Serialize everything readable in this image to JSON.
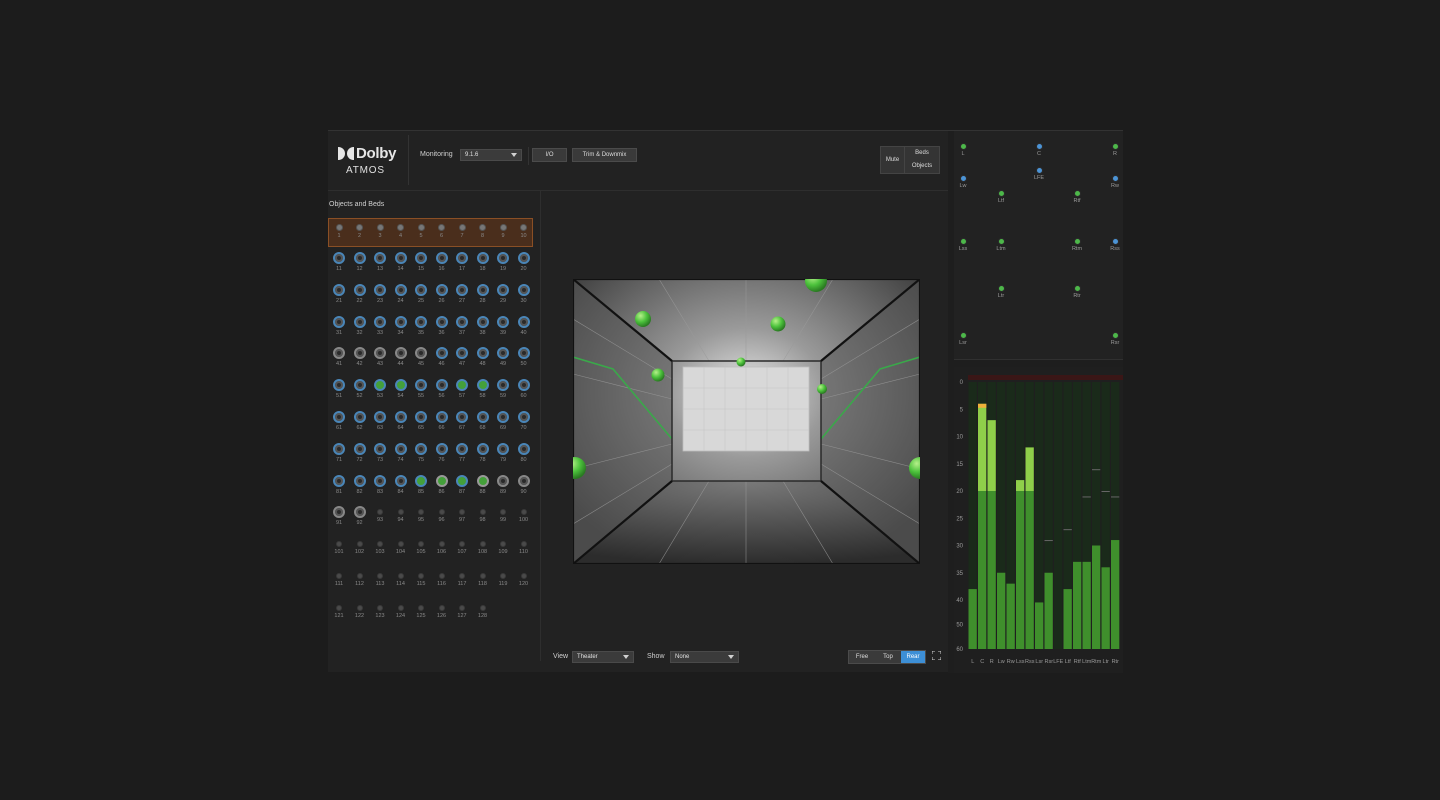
{
  "app": {
    "logo_top": "Dolby",
    "logo_bottom": "ATMOS"
  },
  "toolbar": {
    "monitoring_label": "Monitoring",
    "monitoring_value": "9.1.6",
    "io_label": "I/O",
    "trim_label": "Trim & Downmix",
    "mute_label": "Mute",
    "beds_label": "Beds",
    "objects_label": "Objects"
  },
  "left_panel": {
    "title": "Objects and Beds",
    "beds": [
      "1",
      "2",
      "3",
      "4",
      "5",
      "6",
      "7",
      "8",
      "9",
      "10"
    ],
    "object_rows": [
      {
        "labels": [
          "11",
          "12",
          "13",
          "14",
          "15",
          "16",
          "17",
          "18",
          "19",
          "20"
        ],
        "states": [
          "b",
          "b",
          "b",
          "b",
          "b",
          "b",
          "b",
          "b",
          "b",
          "b"
        ]
      },
      {
        "labels": [
          "21",
          "22",
          "23",
          "24",
          "25",
          "26",
          "27",
          "28",
          "29",
          "30"
        ],
        "states": [
          "b",
          "b",
          "b",
          "b",
          "b",
          "b",
          "b",
          "b",
          "b",
          "b"
        ]
      },
      {
        "labels": [
          "31",
          "32",
          "33",
          "34",
          "35",
          "36",
          "37",
          "38",
          "39",
          "40"
        ],
        "states": [
          "b",
          "b",
          "b",
          "b",
          "b",
          "b",
          "b",
          "b",
          "b",
          "b"
        ]
      },
      {
        "labels": [
          "41",
          "42",
          "43",
          "44",
          "45",
          "46",
          "47",
          "48",
          "49",
          "50"
        ],
        "states": [
          "g",
          "g",
          "g",
          "g",
          "g",
          "b",
          "b",
          "b",
          "b",
          "b"
        ]
      },
      {
        "labels": [
          "51",
          "52",
          "53",
          "54",
          "55",
          "56",
          "57",
          "58",
          "59",
          "60"
        ],
        "states": [
          "b",
          "b",
          "G",
          "G",
          "b",
          "b",
          "G",
          "G",
          "b",
          "b"
        ]
      },
      {
        "labels": [
          "61",
          "62",
          "63",
          "64",
          "65",
          "66",
          "67",
          "68",
          "69",
          "70"
        ],
        "states": [
          "b",
          "b",
          "b",
          "b",
          "b",
          "b",
          "b",
          "b",
          "b",
          "b"
        ]
      },
      {
        "labels": [
          "71",
          "72",
          "73",
          "74",
          "75",
          "76",
          "77",
          "78",
          "79",
          "80"
        ],
        "states": [
          "b",
          "b",
          "b",
          "b",
          "b",
          "b",
          "b",
          "b",
          "b",
          "b"
        ]
      },
      {
        "labels": [
          "81",
          "82",
          "83",
          "84",
          "85",
          "86",
          "87",
          "88",
          "89",
          "90"
        ],
        "states": [
          "b",
          "b",
          "b",
          "b",
          "G",
          "H",
          "G",
          "H",
          "g",
          "g"
        ]
      },
      {
        "labels": [
          "91",
          "92",
          "93",
          "94",
          "95",
          "96",
          "97",
          "98",
          "99",
          "100"
        ],
        "states": [
          "g",
          "g",
          "s",
          "s",
          "s",
          "s",
          "s",
          "s",
          "s",
          "s"
        ]
      },
      {
        "labels": [
          "101",
          "102",
          "103",
          "104",
          "105",
          "106",
          "107",
          "108",
          "109",
          "110"
        ],
        "states": [
          "s",
          "s",
          "s",
          "s",
          "s",
          "s",
          "s",
          "s",
          "s",
          "s"
        ]
      },
      {
        "labels": [
          "111",
          "112",
          "113",
          "114",
          "115",
          "116",
          "117",
          "118",
          "119",
          "120"
        ],
        "states": [
          "s",
          "s",
          "s",
          "s",
          "s",
          "s",
          "s",
          "s",
          "s",
          "s"
        ]
      },
      {
        "labels": [
          "121",
          "122",
          "123",
          "124",
          "125",
          "126",
          "127",
          "128"
        ],
        "states": [
          "s",
          "s",
          "s",
          "s",
          "s",
          "s",
          "s",
          "s"
        ]
      }
    ]
  },
  "bottom_bar": {
    "view_label": "View",
    "view_value": "Theater",
    "show_label": "Show",
    "show_value": "None",
    "free_label": "Free",
    "top_label": "Top",
    "rear_label": "Rear"
  },
  "speakers": [
    {
      "label": "L",
      "color": "green"
    },
    {
      "label": "C",
      "color": "blue"
    },
    {
      "label": "R",
      "color": "green"
    },
    {
      "label": "LFE",
      "color": "blue"
    },
    {
      "label": "Lw",
      "color": "blue"
    },
    {
      "label": "Rw",
      "color": "blue"
    },
    {
      "label": "Ltf",
      "color": "green"
    },
    {
      "label": "Rtf",
      "color": "green"
    },
    {
      "label": "Lss",
      "color": "green"
    },
    {
      "label": "Ltm",
      "color": "green"
    },
    {
      "label": "Rtm",
      "color": "green"
    },
    {
      "label": "Rss",
      "color": "blue"
    },
    {
      "label": "Ltr",
      "color": "green"
    },
    {
      "label": "Rtr",
      "color": "green"
    },
    {
      "label": "Lsr",
      "color": "green"
    },
    {
      "label": "Rsr",
      "color": "green"
    }
  ],
  "meters": {
    "scale": [
      "0",
      "5",
      "10",
      "15",
      "20",
      "25",
      "30",
      "35",
      "40",
      "50",
      "60"
    ],
    "channels": [
      {
        "label": "L",
        "level_db": 38,
        "peak_db": 38
      },
      {
        "label": "C",
        "level_db": 4,
        "peak_db": 4
      },
      {
        "label": "R",
        "level_db": 7,
        "peak_db": 7
      },
      {
        "label": "Lw",
        "level_db": 35,
        "peak_db": 35
      },
      {
        "label": "Rw",
        "level_db": 37,
        "peak_db": 37
      },
      {
        "label": "Lss",
        "level_db": 18,
        "peak_db": 18
      },
      {
        "label": "Rss",
        "level_db": 12,
        "peak_db": 12
      },
      {
        "label": "Lsr",
        "level_db": 41,
        "peak_db": 41
      },
      {
        "label": "Rsr",
        "level_db": 35,
        "peak_db": 29
      },
      {
        "label": "LFE",
        "level_db": 60,
        "peak_db": 60
      },
      {
        "label": "Ltf",
        "level_db": 38,
        "peak_db": 27
      },
      {
        "label": "Rtf",
        "level_db": 33,
        "peak_db": 33
      },
      {
        "label": "Ltm",
        "level_db": 33,
        "peak_db": 21
      },
      {
        "label": "Rtm",
        "level_db": 30,
        "peak_db": 16
      },
      {
        "label": "Ltr",
        "level_db": 34,
        "peak_db": 20
      },
      {
        "label": "Rtr",
        "level_db": 29,
        "peak_db": 21
      }
    ]
  }
}
